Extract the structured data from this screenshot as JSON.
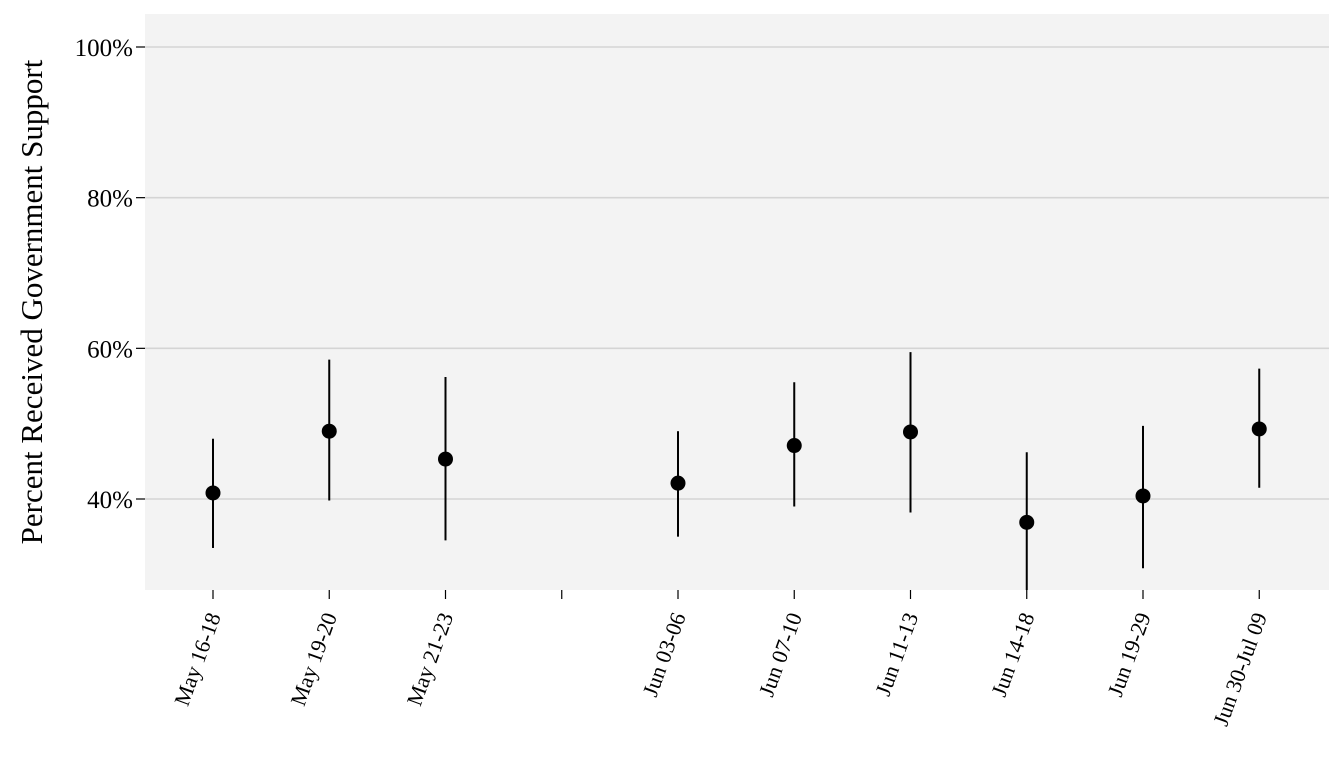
{
  "chart_data": {
    "type": "scatter",
    "style": "point-range",
    "ylabel": "Percent Received Government Support",
    "xlabel": "",
    "ylim": [
      0.28,
      1.04
    ],
    "yticks": [
      0.4,
      0.6,
      0.8,
      1.0
    ],
    "ytick_labels": [
      "40%",
      "60%",
      "80%",
      "100%"
    ],
    "grid": true,
    "legend": "none",
    "colors": {
      "panel": "#f3f3f3",
      "grid": "#d4d4d4",
      "mark": "#000000"
    },
    "categories": [
      "May 16-18",
      "May 19-20",
      "May 21-23",
      "",
      "Jun 03-06",
      "Jun 07-10",
      "Jun 11-13",
      "Jun 14-18",
      "Jun 19-29",
      "Jun 30-Jul 09"
    ],
    "points": [
      {
        "label": "May 16-18",
        "value": 0.408,
        "low": 0.335,
        "high": 0.48
      },
      {
        "label": "May 19-20",
        "value": 0.49,
        "low": 0.398,
        "high": 0.585
      },
      {
        "label": "May 21-23",
        "value": 0.453,
        "low": 0.345,
        "high": 0.562
      },
      {
        "label": "",
        "value": null,
        "low": null,
        "high": null
      },
      {
        "label": "Jun 03-06",
        "value": 0.421,
        "low": 0.35,
        "high": 0.49
      },
      {
        "label": "Jun 07-10",
        "value": 0.471,
        "low": 0.39,
        "high": 0.555
      },
      {
        "label": "Jun 11-13",
        "value": 0.489,
        "low": 0.382,
        "high": 0.595
      },
      {
        "label": "Jun 14-18",
        "value": 0.369,
        "low": 0.27,
        "high": 0.462
      },
      {
        "label": "Jun 19-29",
        "value": 0.404,
        "low": 0.308,
        "high": 0.497
      },
      {
        "label": "Jun 30-Jul 09",
        "value": 0.493,
        "low": 0.415,
        "high": 0.573
      }
    ]
  }
}
